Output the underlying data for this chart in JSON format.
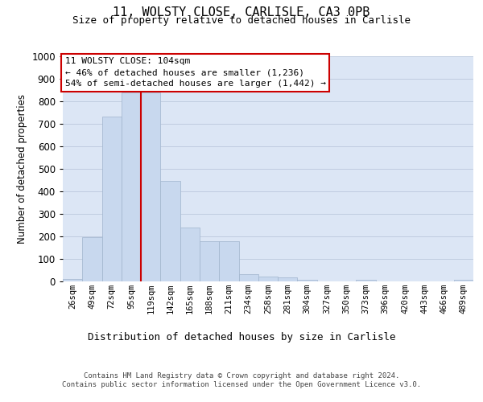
{
  "title_line1": "11, WOLSTY CLOSE, CARLISLE, CA3 0PB",
  "title_line2": "Size of property relative to detached houses in Carlisle",
  "xlabel": "Distribution of detached houses by size in Carlisle",
  "ylabel": "Number of detached properties",
  "footnote1": "Contains HM Land Registry data © Crown copyright and database right 2024.",
  "footnote2": "Contains public sector information licensed under the Open Government Licence v3.0.",
  "annotation_line1": "11 WOLSTY CLOSE: 104sqm",
  "annotation_line2": "← 46% of detached houses are smaller (1,236)",
  "annotation_line3": "54% of semi-detached houses are larger (1,442) →",
  "bin_labels": [
    "26sqm",
    "49sqm",
    "72sqm",
    "95sqm",
    "119sqm",
    "142sqm",
    "165sqm",
    "188sqm",
    "211sqm",
    "234sqm",
    "258sqm",
    "281sqm",
    "304sqm",
    "327sqm",
    "350sqm",
    "373sqm",
    "396sqm",
    "420sqm",
    "443sqm",
    "466sqm",
    "489sqm"
  ],
  "bar_values": [
    12,
    195,
    733,
    838,
    838,
    448,
    241,
    178,
    178,
    32,
    22,
    18,
    8,
    0,
    0,
    7,
    0,
    0,
    0,
    0,
    8
  ],
  "bar_color": "#c8d8ee",
  "bar_edge_color": "#a0b4cc",
  "vline_x": 3.5,
  "vline_color": "#cc0000",
  "grid_color": "#c0cce0",
  "background_color": "#dce6f5",
  "ylim": [
    0,
    1000
  ],
  "yticks": [
    0,
    100,
    200,
    300,
    400,
    500,
    600,
    700,
    800,
    900,
    1000
  ],
  "fig_width": 6.0,
  "fig_height": 5.0,
  "dpi": 100
}
